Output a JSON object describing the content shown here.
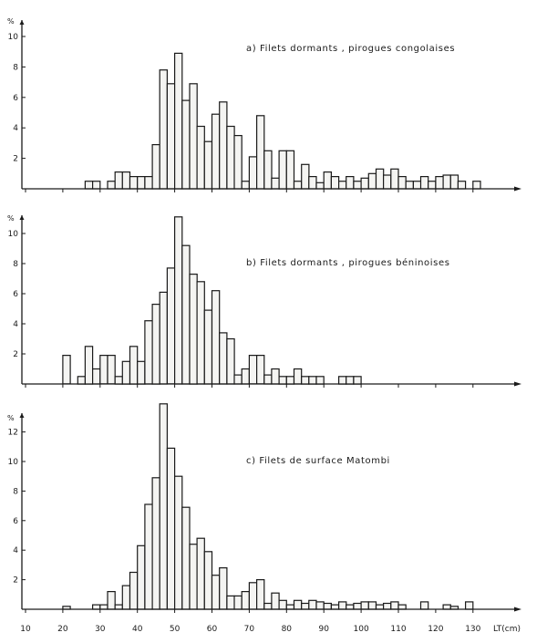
{
  "figure": {
    "x_axis_label": "LT(cm)",
    "y_axis_unit": "%",
    "x_ticks": [
      10,
      20,
      30,
      40,
      50,
      60,
      70,
      80,
      90,
      100,
      110,
      120,
      130
    ],
    "bar_color": "#f4f4f2",
    "line_color": "#1a1a1a"
  },
  "chart_data": [
    {
      "type": "bar",
      "title": "a) Filets dormants , pirogues congolaises",
      "xlabel": "LT(cm)",
      "ylabel": "%",
      "ylim": [
        0,
        11
      ],
      "yticks": [
        2,
        4,
        6,
        8,
        10
      ],
      "bin_width_cm": 2,
      "x": [
        26,
        28,
        32,
        34,
        36,
        38,
        40,
        42,
        44,
        46,
        48,
        50,
        52,
        54,
        56,
        58,
        60,
        62,
        64,
        66,
        68,
        70,
        72,
        74,
        76,
        78,
        80,
        82,
        84,
        86,
        88,
        90,
        92,
        94,
        96,
        98,
        100,
        102,
        104,
        106,
        108,
        110,
        112,
        114,
        116,
        118,
        120,
        122,
        124,
        126,
        130
      ],
      "values": [
        0.5,
        0.5,
        0.5,
        1.1,
        1.1,
        0.8,
        0.8,
        0.8,
        2.9,
        7.8,
        6.9,
        8.9,
        5.8,
        6.9,
        4.1,
        3.1,
        4.9,
        5.7,
        4.1,
        3.5,
        0.5,
        2.1,
        4.8,
        2.5,
        0.7,
        2.5,
        2.5,
        0.5,
        1.6,
        0.8,
        0.4,
        1.1,
        0.8,
        0.5,
        0.8,
        0.5,
        0.7,
        1.0,
        1.3,
        0.9,
        1.3,
        0.8,
        0.5,
        0.5,
        0.8,
        0.5,
        0.8,
        0.9,
        0.9,
        0.5,
        0.5
      ]
    },
    {
      "type": "bar",
      "title": "b) Filets dormants , pirogues béninoises",
      "xlabel": "LT(cm)",
      "ylabel": "%",
      "ylim": [
        0,
        11.5
      ],
      "yticks": [
        2,
        4,
        6,
        8,
        10
      ],
      "bin_width_cm": 2,
      "x": [
        20,
        24,
        26,
        28,
        30,
        32,
        34,
        36,
        38,
        40,
        42,
        44,
        46,
        48,
        50,
        52,
        54,
        56,
        58,
        60,
        62,
        64,
        66,
        68,
        70,
        72,
        74,
        76,
        78,
        80,
        82,
        84,
        86,
        88,
        94,
        96,
        98
      ],
      "values": [
        1.9,
        0.5,
        2.5,
        1.0,
        1.9,
        1.9,
        0.5,
        1.5,
        2.5,
        1.5,
        4.2,
        5.3,
        6.1,
        7.7,
        11.1,
        9.2,
        7.3,
        6.8,
        4.9,
        6.2,
        3.4,
        3.0,
        0.6,
        1.0,
        1.9,
        1.9,
        0.6,
        1.0,
        0.5,
        0.5,
        1.0,
        0.5,
        0.5,
        0.5,
        0.5,
        0.5,
        0.5
      ]
    },
    {
      "type": "bar",
      "title": "c) Filets de surface Matombi",
      "xlabel": "LT(cm)",
      "ylabel": "%",
      "ylim": [
        0,
        14
      ],
      "yticks": [
        2,
        4,
        6,
        8,
        10,
        12
      ],
      "bin_width_cm": 2,
      "x": [
        20,
        28,
        30,
        32,
        34,
        36,
        38,
        40,
        42,
        44,
        46,
        48,
        50,
        52,
        54,
        56,
        58,
        60,
        62,
        64,
        66,
        68,
        70,
        72,
        74,
        76,
        78,
        80,
        82,
        84,
        86,
        88,
        90,
        92,
        94,
        96,
        98,
        100,
        102,
        104,
        106,
        108,
        110,
        116,
        122,
        124,
        128
      ],
      "values": [
        0.2,
        0.3,
        0.3,
        1.2,
        0.3,
        1.6,
        2.5,
        4.3,
        7.1,
        8.9,
        13.9,
        10.9,
        9.0,
        6.9,
        4.4,
        4.8,
        3.9,
        2.3,
        2.8,
        0.9,
        0.9,
        1.2,
        1.8,
        2.0,
        0.4,
        1.1,
        0.6,
        0.3,
        0.6,
        0.4,
        0.6,
        0.5,
        0.4,
        0.3,
        0.5,
        0.3,
        0.4,
        0.5,
        0.5,
        0.3,
        0.4,
        0.5,
        0.3,
        0.5,
        0.3,
        0.2,
        0.5
      ]
    }
  ]
}
